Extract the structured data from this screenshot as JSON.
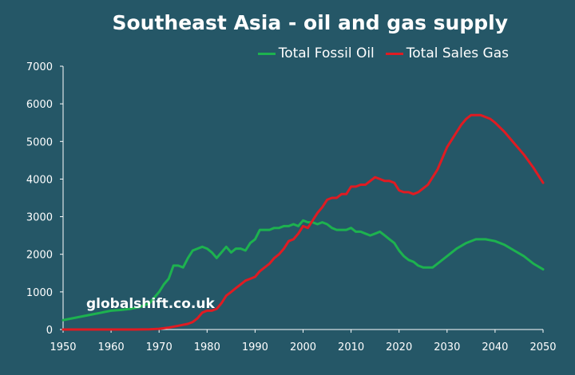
{
  "chart_data": {
    "type": "line",
    "title": "Southeast Asia - oil and gas supply",
    "xlabel": "",
    "ylabel": "",
    "xlim": [
      1950,
      2050
    ],
    "ylim": [
      0,
      7000
    ],
    "x_ticks": [
      "1950",
      "1960",
      "1970",
      "1980",
      "1990",
      "2000",
      "2010",
      "2020",
      "2030",
      "2040",
      "2050"
    ],
    "y_ticks": [
      "0",
      "1000",
      "2000",
      "3000",
      "4000",
      "5000",
      "6000",
      "7000"
    ],
    "grid": false,
    "legend_position": "top-right",
    "series": [
      {
        "name": "Total Fossil Oil",
        "color": "#1db24f",
        "points": [
          [
            1950,
            250
          ],
          [
            1952,
            300
          ],
          [
            1954,
            350
          ],
          [
            1956,
            400
          ],
          [
            1958,
            450
          ],
          [
            1960,
            500
          ],
          [
            1962,
            520
          ],
          [
            1964,
            550
          ],
          [
            1966,
            600
          ],
          [
            1968,
            700
          ],
          [
            1969,
            850
          ],
          [
            1970,
            1000
          ],
          [
            1971,
            1200
          ],
          [
            1972,
            1350
          ],
          [
            1973,
            1700
          ],
          [
            1974,
            1700
          ],
          [
            1975,
            1650
          ],
          [
            1976,
            1900
          ],
          [
            1977,
            2100
          ],
          [
            1978,
            2150
          ],
          [
            1979,
            2200
          ],
          [
            1980,
            2150
          ],
          [
            1981,
            2050
          ],
          [
            1982,
            1900
          ],
          [
            1983,
            2050
          ],
          [
            1984,
            2200
          ],
          [
            1985,
            2050
          ],
          [
            1986,
            2150
          ],
          [
            1987,
            2150
          ],
          [
            1988,
            2100
          ],
          [
            1989,
            2300
          ],
          [
            1990,
            2400
          ],
          [
            1991,
            2650
          ],
          [
            1992,
            2650
          ],
          [
            1993,
            2650
          ],
          [
            1994,
            2700
          ],
          [
            1995,
            2700
          ],
          [
            1996,
            2750
          ],
          [
            1997,
            2750
          ],
          [
            1998,
            2800
          ],
          [
            1999,
            2750
          ],
          [
            2000,
            2900
          ],
          [
            2001,
            2850
          ],
          [
            2002,
            2850
          ],
          [
            2003,
            2800
          ],
          [
            2004,
            2850
          ],
          [
            2005,
            2800
          ],
          [
            2006,
            2700
          ],
          [
            2007,
            2650
          ],
          [
            2008,
            2650
          ],
          [
            2009,
            2650
          ],
          [
            2010,
            2700
          ],
          [
            2011,
            2600
          ],
          [
            2012,
            2600
          ],
          [
            2013,
            2550
          ],
          [
            2014,
            2500
          ],
          [
            2015,
            2550
          ],
          [
            2016,
            2600
          ],
          [
            2017,
            2500
          ],
          [
            2018,
            2400
          ],
          [
            2019,
            2300
          ],
          [
            2020,
            2100
          ],
          [
            2021,
            1950
          ],
          [
            2022,
            1850
          ],
          [
            2023,
            1800
          ],
          [
            2024,
            1700
          ],
          [
            2025,
            1650
          ],
          [
            2026,
            1650
          ],
          [
            2027,
            1650
          ],
          [
            2028,
            1750
          ],
          [
            2030,
            1950
          ],
          [
            2032,
            2150
          ],
          [
            2034,
            2300
          ],
          [
            2036,
            2400
          ],
          [
            2038,
            2400
          ],
          [
            2040,
            2350
          ],
          [
            2042,
            2250
          ],
          [
            2044,
            2100
          ],
          [
            2046,
            1950
          ],
          [
            2048,
            1750
          ],
          [
            2050,
            1600
          ]
        ]
      },
      {
        "name": "Total Sales Gas",
        "color": "#e01b22",
        "points": [
          [
            1950,
            0
          ],
          [
            1955,
            0
          ],
          [
            1960,
            0
          ],
          [
            1965,
            0
          ],
          [
            1968,
            5
          ],
          [
            1970,
            20
          ],
          [
            1972,
            50
          ],
          [
            1974,
            100
          ],
          [
            1976,
            150
          ],
          [
            1977,
            200
          ],
          [
            1978,
            300
          ],
          [
            1979,
            450
          ],
          [
            1980,
            500
          ],
          [
            1981,
            500
          ],
          [
            1982,
            550
          ],
          [
            1983,
            700
          ],
          [
            1984,
            900
          ],
          [
            1985,
            1000
          ],
          [
            1986,
            1100
          ],
          [
            1987,
            1200
          ],
          [
            1988,
            1300
          ],
          [
            1989,
            1350
          ],
          [
            1990,
            1400
          ],
          [
            1991,
            1550
          ],
          [
            1992,
            1650
          ],
          [
            1993,
            1750
          ],
          [
            1994,
            1900
          ],
          [
            1995,
            2000
          ],
          [
            1996,
            2150
          ],
          [
            1997,
            2350
          ],
          [
            1998,
            2400
          ],
          [
            1999,
            2550
          ],
          [
            2000,
            2750
          ],
          [
            2001,
            2700
          ],
          [
            2002,
            2900
          ],
          [
            2003,
            3100
          ],
          [
            2004,
            3250
          ],
          [
            2005,
            3450
          ],
          [
            2006,
            3500
          ],
          [
            2007,
            3500
          ],
          [
            2008,
            3600
          ],
          [
            2009,
            3600
          ],
          [
            2010,
            3800
          ],
          [
            2011,
            3800
          ],
          [
            2012,
            3850
          ],
          [
            2013,
            3850
          ],
          [
            2014,
            3950
          ],
          [
            2015,
            4050
          ],
          [
            2016,
            4000
          ],
          [
            2017,
            3950
          ],
          [
            2018,
            3950
          ],
          [
            2019,
            3900
          ],
          [
            2020,
            3700
          ],
          [
            2021,
            3650
          ],
          [
            2022,
            3650
          ],
          [
            2023,
            3600
          ],
          [
            2024,
            3650
          ],
          [
            2025,
            3750
          ],
          [
            2026,
            3850
          ],
          [
            2027,
            4050
          ],
          [
            2028,
            4250
          ],
          [
            2029,
            4550
          ],
          [
            2030,
            4850
          ],
          [
            2031,
            5050
          ],
          [
            2032,
            5250
          ],
          [
            2033,
            5450
          ],
          [
            2034,
            5600
          ],
          [
            2035,
            5700
          ],
          [
            2036,
            5700
          ],
          [
            2037,
            5700
          ],
          [
            2038,
            5650
          ],
          [
            2039,
            5600
          ],
          [
            2040,
            5500
          ],
          [
            2042,
            5250
          ],
          [
            2044,
            4950
          ],
          [
            2046,
            4650
          ],
          [
            2048,
            4300
          ],
          [
            2050,
            3900
          ]
        ]
      }
    ]
  },
  "watermark": "globalshift.co.uk",
  "colors": {
    "background": "#255767",
    "axis": "#ffffff",
    "text": "#ffffff"
  }
}
